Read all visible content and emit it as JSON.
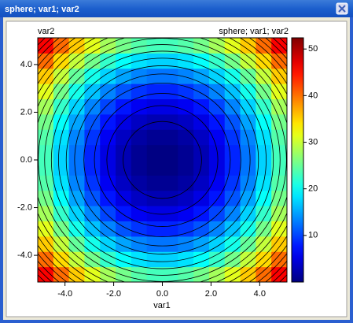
{
  "window": {
    "title": "sphere; var1; var2"
  },
  "chart_data": {
    "type": "heatmap",
    "title": "sphere; var1; var2",
    "x_label": "var1",
    "y_label": "var2",
    "xlim": [
      -5.12,
      5.12
    ],
    "ylim": [
      -5.12,
      5.12
    ],
    "xticks": [
      {
        "value": -4,
        "label": "-4.0"
      },
      {
        "value": -2,
        "label": "-2.0"
      },
      {
        "value": 0,
        "label": "0.0"
      },
      {
        "value": 2,
        "label": "2.0"
      },
      {
        "value": 4,
        "label": "4.0"
      }
    ],
    "yticks": [
      {
        "value": -4,
        "label": "-4.0"
      },
      {
        "value": -2,
        "label": "-2.0"
      },
      {
        "value": 0,
        "label": "0.0"
      },
      {
        "value": 2,
        "label": "2.0"
      },
      {
        "value": 4,
        "label": "4.0"
      }
    ],
    "x": [
      -4.8,
      -4.16,
      -3.52,
      -2.88,
      -2.24,
      -1.6,
      -0.96,
      -0.32,
      0.32,
      0.96,
      1.6,
      2.24,
      2.88,
      3.52,
      4.16,
      4.8
    ],
    "y": [
      -4.8,
      -4.16,
      -3.52,
      -2.88,
      -2.24,
      -1.6,
      -0.96,
      -0.32,
      0.32,
      0.96,
      1.6,
      2.24,
      2.88,
      3.52,
      4.16,
      4.8
    ],
    "z": [
      [
        46.08,
        40.35,
        35.43,
        31.33,
        28.06,
        25.6,
        23.96,
        23.14,
        23.14,
        23.96,
        25.6,
        28.06,
        31.33,
        35.43,
        40.35,
        46.08
      ],
      [
        40.35,
        34.62,
        29.7,
        25.6,
        22.33,
        19.87,
        18.23,
        17.41,
        17.41,
        18.23,
        19.87,
        22.33,
        25.6,
        29.7,
        34.62,
        40.35
      ],
      [
        35.43,
        29.7,
        24.78,
        20.68,
        17.41,
        14.95,
        13.31,
        12.49,
        12.49,
        13.31,
        14.95,
        17.41,
        20.68,
        24.78,
        29.7,
        35.43
      ],
      [
        31.33,
        25.6,
        20.68,
        16.58,
        13.31,
        10.85,
        9.21,
        8.39,
        8.39,
        9.21,
        10.85,
        13.31,
        16.58,
        20.68,
        25.6,
        31.33
      ],
      [
        28.06,
        22.33,
        17.41,
        13.31,
        10.04,
        7.58,
        5.94,
        5.12,
        5.12,
        5.94,
        7.58,
        10.04,
        13.31,
        17.41,
        22.33,
        28.06
      ],
      [
        25.6,
        19.87,
        14.95,
        10.85,
        7.58,
        5.12,
        3.48,
        2.66,
        2.66,
        3.48,
        5.12,
        7.58,
        10.85,
        14.95,
        19.87,
        25.6
      ],
      [
        23.96,
        18.23,
        13.31,
        9.21,
        5.94,
        3.48,
        1.84,
        1.02,
        1.02,
        1.84,
        3.48,
        5.94,
        9.21,
        13.31,
        18.23,
        23.96
      ],
      [
        23.14,
        17.41,
        12.49,
        8.39,
        5.12,
        2.66,
        1.02,
        0.2,
        0.2,
        1.02,
        2.66,
        5.12,
        8.39,
        12.49,
        17.41,
        23.14
      ],
      [
        23.14,
        17.41,
        12.49,
        8.39,
        5.12,
        2.66,
        1.02,
        0.2,
        0.2,
        1.02,
        2.66,
        5.12,
        8.39,
        12.49,
        17.41,
        23.14
      ],
      [
        23.96,
        18.23,
        13.31,
        9.21,
        5.94,
        3.48,
        1.84,
        1.02,
        1.02,
        1.84,
        3.48,
        5.94,
        9.21,
        13.31,
        18.23,
        23.96
      ],
      [
        25.6,
        19.87,
        14.95,
        10.85,
        7.58,
        5.12,
        3.48,
        2.66,
        2.66,
        3.48,
        5.12,
        7.58,
        10.85,
        14.95,
        19.87,
        25.6
      ],
      [
        28.06,
        22.33,
        17.41,
        13.31,
        10.04,
        7.58,
        5.94,
        5.12,
        5.12,
        5.94,
        7.58,
        10.04,
        13.31,
        17.41,
        22.33,
        28.06
      ],
      [
        31.33,
        25.6,
        20.68,
        16.58,
        13.31,
        10.85,
        9.21,
        8.39,
        8.39,
        9.21,
        10.85,
        13.31,
        16.58,
        20.68,
        25.6,
        31.33
      ],
      [
        35.43,
        29.7,
        24.78,
        20.68,
        17.41,
        14.95,
        13.31,
        12.49,
        12.49,
        13.31,
        14.95,
        17.41,
        20.68,
        24.78,
        29.7,
        35.43
      ],
      [
        40.35,
        34.62,
        29.7,
        25.6,
        22.33,
        19.87,
        18.23,
        17.41,
        17.41,
        18.23,
        19.87,
        22.33,
        25.6,
        29.7,
        34.62,
        40.35
      ],
      [
        46.08,
        40.35,
        35.43,
        31.33,
        28.06,
        25.6,
        23.96,
        23.14,
        23.14,
        23.96,
        25.6,
        28.06,
        31.33,
        35.43,
        40.35,
        46.08
      ]
    ],
    "contour_levels": [
      2.6,
      5.2,
      7.8,
      10.4,
      13,
      15.6,
      18.2,
      20.8,
      23.4,
      26,
      28.6,
      31.2,
      33.8,
      36.4,
      39,
      41.6,
      44.2,
      46.8,
      49.4
    ],
    "zlim": [
      0,
      52.4
    ],
    "zticks": [
      10,
      20,
      30,
      40,
      50
    ],
    "colormap": "jet"
  }
}
